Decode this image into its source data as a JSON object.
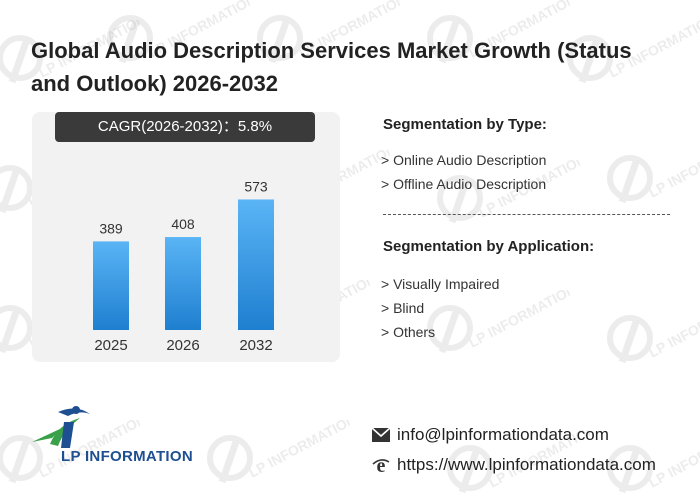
{
  "title": "Global Audio Description Services Market Growth (Status and Outlook) 2026-2032",
  "cagr_label": "CAGR(2026-2032)：5.8%",
  "chart_data": {
    "type": "bar",
    "categories": [
      "2025",
      "2026",
      "2032"
    ],
    "values": [
      389,
      408,
      573
    ],
    "title": "",
    "xlabel": "",
    "ylabel": "",
    "ylim": [
      0,
      700
    ],
    "grid": false,
    "bar_color_top": "#5ab4f5",
    "bar_color_bottom": "#1f7fd0"
  },
  "segmentation_type": {
    "heading": "Segmentation by Type:",
    "items": [
      "> Online Audio Description",
      "> Offline Audio Description"
    ]
  },
  "segmentation_application": {
    "heading": "Segmentation by Application:",
    "items": [
      "> Visually Impaired",
      "> Blind",
      "> Others"
    ]
  },
  "logo": {
    "text": "LP INFORMATION",
    "watermark_text": "LP INFORMATION"
  },
  "contact": {
    "email": "info@lpinformationdata.com",
    "website": "https://www.lpinformationdata.com",
    "email_icon": "envelope-icon",
    "web_icon": "browser-e-icon"
  },
  "colors": {
    "brand_blue": "#1e4f91",
    "brand_green": "#3aa14a",
    "pill_bg": "#3a3a3a"
  }
}
